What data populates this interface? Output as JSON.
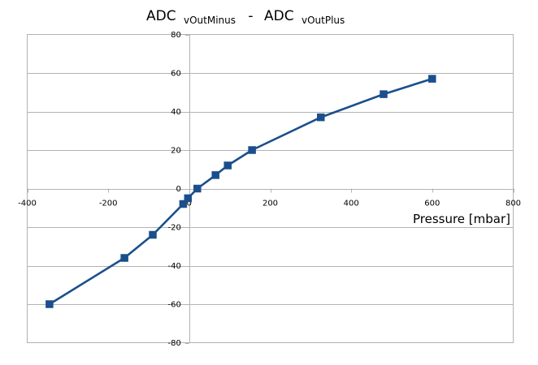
{
  "chart_data": {
    "type": "line",
    "title": {
      "main_a": "ADC",
      "sub_a": "vOutMinus",
      "separator": "-",
      "main_b": "ADC",
      "sub_b": "vOutPlus"
    },
    "xlabel": "Pressure [mbar]",
    "ylabel": "",
    "xlim": [
      -400,
      800
    ],
    "ylim": [
      -80,
      80
    ],
    "x_ticks": [
      -400,
      -200,
      0,
      200,
      400,
      600,
      800
    ],
    "y_ticks": [
      -80,
      -60,
      -40,
      -20,
      0,
      20,
      40,
      60,
      80
    ],
    "x_tick_labels": [
      "-400",
      "-200",
      "0",
      "200",
      "400",
      "600",
      "800"
    ],
    "y_tick_labels": [
      "-80",
      "-60",
      "-40",
      "-20",
      "0",
      "20",
      "40",
      "60",
      "80"
    ],
    "grid": "horizontal",
    "legend": "none",
    "series": [
      {
        "color": "#1a4f8c",
        "marker": "square",
        "points": [
          {
            "x": -345,
            "y": -60
          },
          {
            "x": -160,
            "y": -36
          },
          {
            "x": -90,
            "y": -24
          },
          {
            "x": -15,
            "y": -8
          },
          {
            "x": -3,
            "y": -5
          },
          {
            "x": 20,
            "y": 0
          },
          {
            "x": 65,
            "y": 7
          },
          {
            "x": 95,
            "y": 12
          },
          {
            "x": 155,
            "y": 20
          },
          {
            "x": 325,
            "y": 37
          },
          {
            "x": 480,
            "y": 49
          },
          {
            "x": 600,
            "y": 57
          }
        ]
      }
    ]
  }
}
